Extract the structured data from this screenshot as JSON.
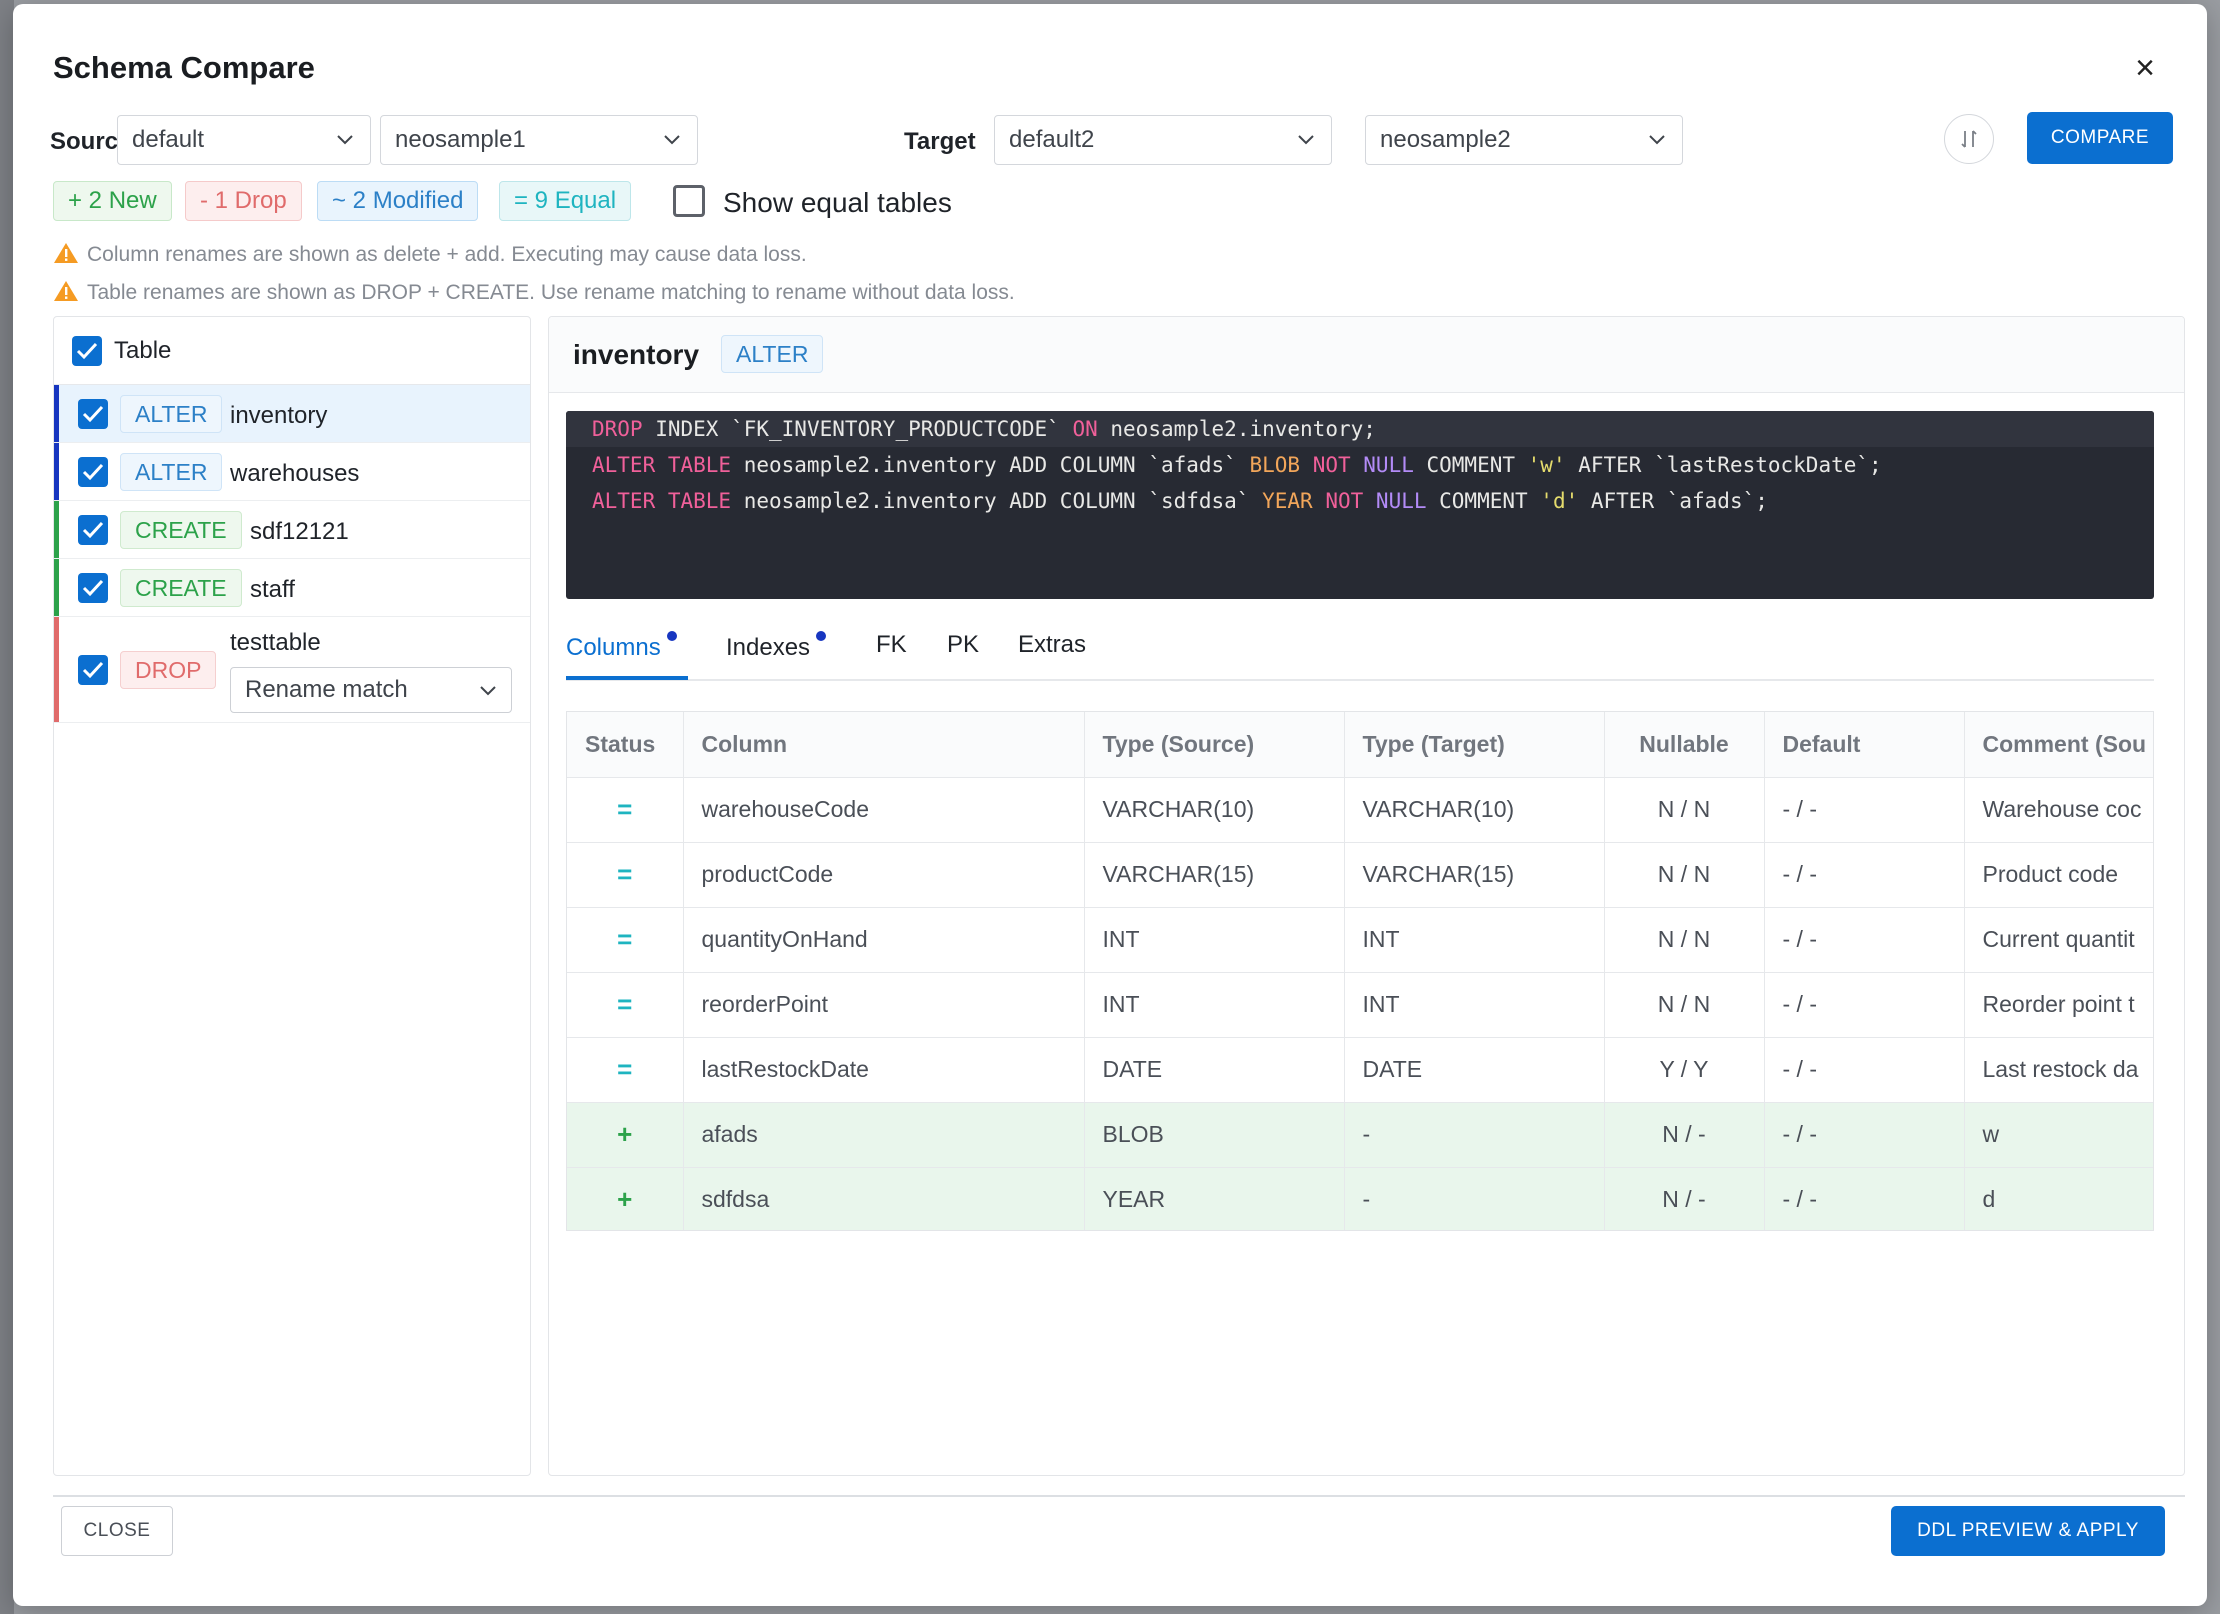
{
  "dialog": {
    "title": "Schema Compare",
    "close_icon": "close-icon"
  },
  "source": {
    "label": "Source",
    "connection": "default",
    "database": "neosample1"
  },
  "target": {
    "label": "Target",
    "connection": "default2",
    "database": "neosample2"
  },
  "actions": {
    "swap_icon": "swap-vertical-icon",
    "compare_label": "COMPARE"
  },
  "summary": {
    "new": "+ 2 New",
    "drop": "- 1 Drop",
    "modified": "~ 2 Modified",
    "equal": "= 9 Equal",
    "show_equal_label": "Show equal tables",
    "show_equal_checked": false
  },
  "warnings": [
    "Column renames are shown as delete + add. Executing may cause data loss.",
    "Table renames are shown as DROP + CREATE. Use rename matching to rename without data loss."
  ],
  "table_list": {
    "header": "Table",
    "items": [
      {
        "op": "ALTER",
        "name": "inventory",
        "selected": true
      },
      {
        "op": "ALTER",
        "name": "warehouses"
      },
      {
        "op": "CREATE",
        "name": "sdf12121"
      },
      {
        "op": "CREATE",
        "name": "staff"
      },
      {
        "op": "DROP",
        "name": "testtable",
        "rename_placeholder": "Rename match"
      }
    ]
  },
  "detail": {
    "table_name": "inventory",
    "op": "ALTER",
    "ddl": {
      "l1": {
        "a": "DROP",
        "b": " INDEX `FK_INVENTORY_PRODUCTCODE` ",
        "c": "ON",
        "d": " neosample2.inventory;"
      },
      "l2": {
        "a": "ALTER TABLE",
        "b": " neosample2.inventory ADD COLUMN `afads` ",
        "c": "BLOB",
        "d": " ",
        "e": "NOT",
        "f": " ",
        "g": "NULL",
        "h": " COMMENT ",
        "i": "'w'",
        "j": " AFTER `lastRestockDate`;"
      },
      "l3": {
        "a": "ALTER TABLE",
        "b": " neosample2.inventory ADD COLUMN `sdfdsa` ",
        "c": "YEAR",
        "d": " ",
        "e": "NOT",
        "f": " ",
        "g": "NULL",
        "h": " COMMENT ",
        "i": "'d'",
        "j": " AFTER `afads`;"
      }
    },
    "tabs": [
      "Columns",
      "Indexes",
      "FK",
      "PK",
      "Extras"
    ],
    "active_tab": "Columns",
    "columns_table": {
      "headers": [
        "Status",
        "Column",
        "Type (Source)",
        "Type (Target)",
        "Nullable",
        "Default",
        "Comment (Sou"
      ],
      "rows": [
        [
          "=",
          "warehouseCode",
          "VARCHAR(10)",
          "VARCHAR(10)",
          "N / N",
          "- / -",
          "Warehouse coc"
        ],
        [
          "=",
          "productCode",
          "VARCHAR(15)",
          "VARCHAR(15)",
          "N / N",
          "- / -",
          "Product code"
        ],
        [
          "=",
          "quantityOnHand",
          "INT",
          "INT",
          "N / N",
          "- / -",
          "Current quantit"
        ],
        [
          "=",
          "reorderPoint",
          "INT",
          "INT",
          "N / N",
          "- / -",
          "Reorder point t"
        ],
        [
          "=",
          "lastRestockDate",
          "DATE",
          "DATE",
          "Y / Y",
          "- / -",
          "Last restock da"
        ],
        [
          "+",
          "afads",
          "BLOB",
          "-",
          "N / -",
          "- / -",
          "w"
        ],
        [
          "+",
          "sdfdsa",
          "YEAR",
          "-",
          "N / -",
          "- / -",
          "d"
        ]
      ]
    }
  },
  "footer": {
    "close_label": "CLOSE",
    "apply_label": "DDL PREVIEW & APPLY"
  },
  "colors": {
    "primary": "#0b6fd0",
    "alter": "#2c80c7",
    "create": "#2ca24a",
    "drop": "#e06b6b",
    "equal": "#1eb4c0"
  }
}
